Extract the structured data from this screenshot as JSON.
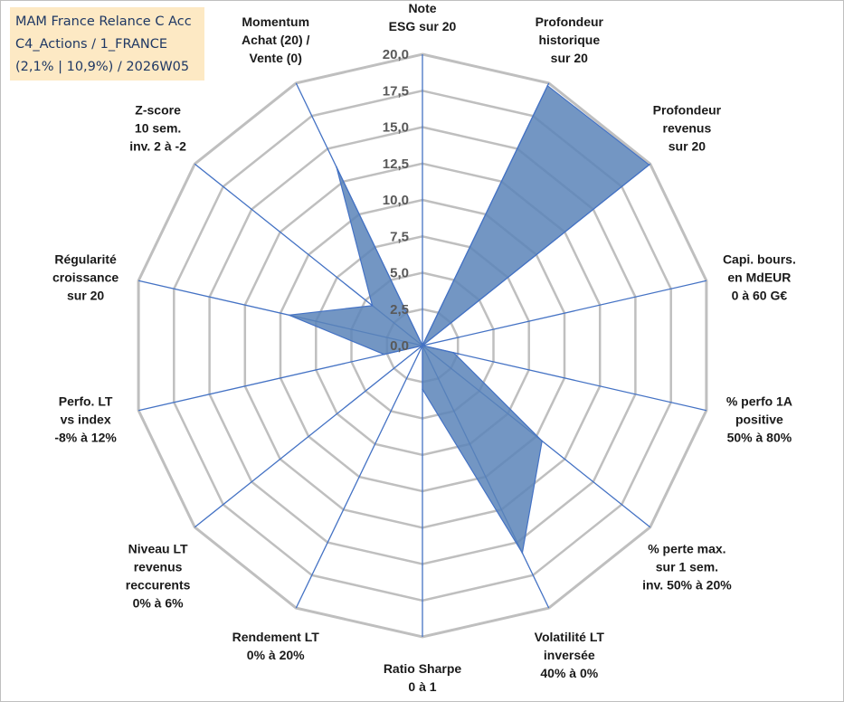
{
  "title_box": {
    "line1": "MAM France Relance C Acc",
    "line2": "C4_Actions / 1_FRANCE",
    "line3": "(2,1% | 10,9%) / 2026W05"
  },
  "chart_data": {
    "type": "radar",
    "title": "MAM France Relance C Acc",
    "rmin": 0,
    "rmax": 20,
    "ticks": [
      "0,0",
      "2,5",
      "5,0",
      "7,5",
      "10,0",
      "12,5",
      "15,0",
      "17,5",
      "20,0"
    ],
    "categories": [
      [
        "Note",
        "ESG sur 20"
      ],
      [
        "Profondeur",
        "historique",
        "sur 20"
      ],
      [
        "Profondeur",
        "revenus",
        "sur 20"
      ],
      [
        "Capi. bours.",
        "en MdEUR",
        "0 à 60 G€"
      ],
      [
        "% perfo 1A",
        "positive",
        "50% à 80%"
      ],
      [
        "% perte max.",
        "sur 1 sem.",
        "inv. 50% à 20%"
      ],
      [
        "Volatilité LT",
        "inversée",
        "40% à 0%"
      ],
      [
        "Ratio Sharpe",
        "0 à 1"
      ],
      [
        "Rendement LT",
        "0% à 20%"
      ],
      [
        "Niveau LT",
        "revenus",
        "reccurents",
        "0% à 6%"
      ],
      [
        "Perfo. LT",
        "vs index",
        "-8% à 12%"
      ],
      [
        "Régularité",
        "croissance",
        "sur 20"
      ],
      [
        "Z-score",
        "10 sem.",
        "inv. 2 à -2"
      ],
      [
        "Momentum",
        "Achat (20) /",
        "Vente (0)"
      ]
    ],
    "series": [
      {
        "name": "MAM France Relance C Acc",
        "values": [
          0,
          19.8,
          19.9,
          0,
          2.2,
          10.5,
          15.8,
          3.0,
          0,
          0,
          2.7,
          9.4,
          4.4,
          13.6
        ]
      }
    ],
    "colors": {
      "fill": "#5b84b8",
      "line": "#4472c4",
      "spoke": "#4472c4",
      "grid": "#bfbfbf"
    }
  }
}
